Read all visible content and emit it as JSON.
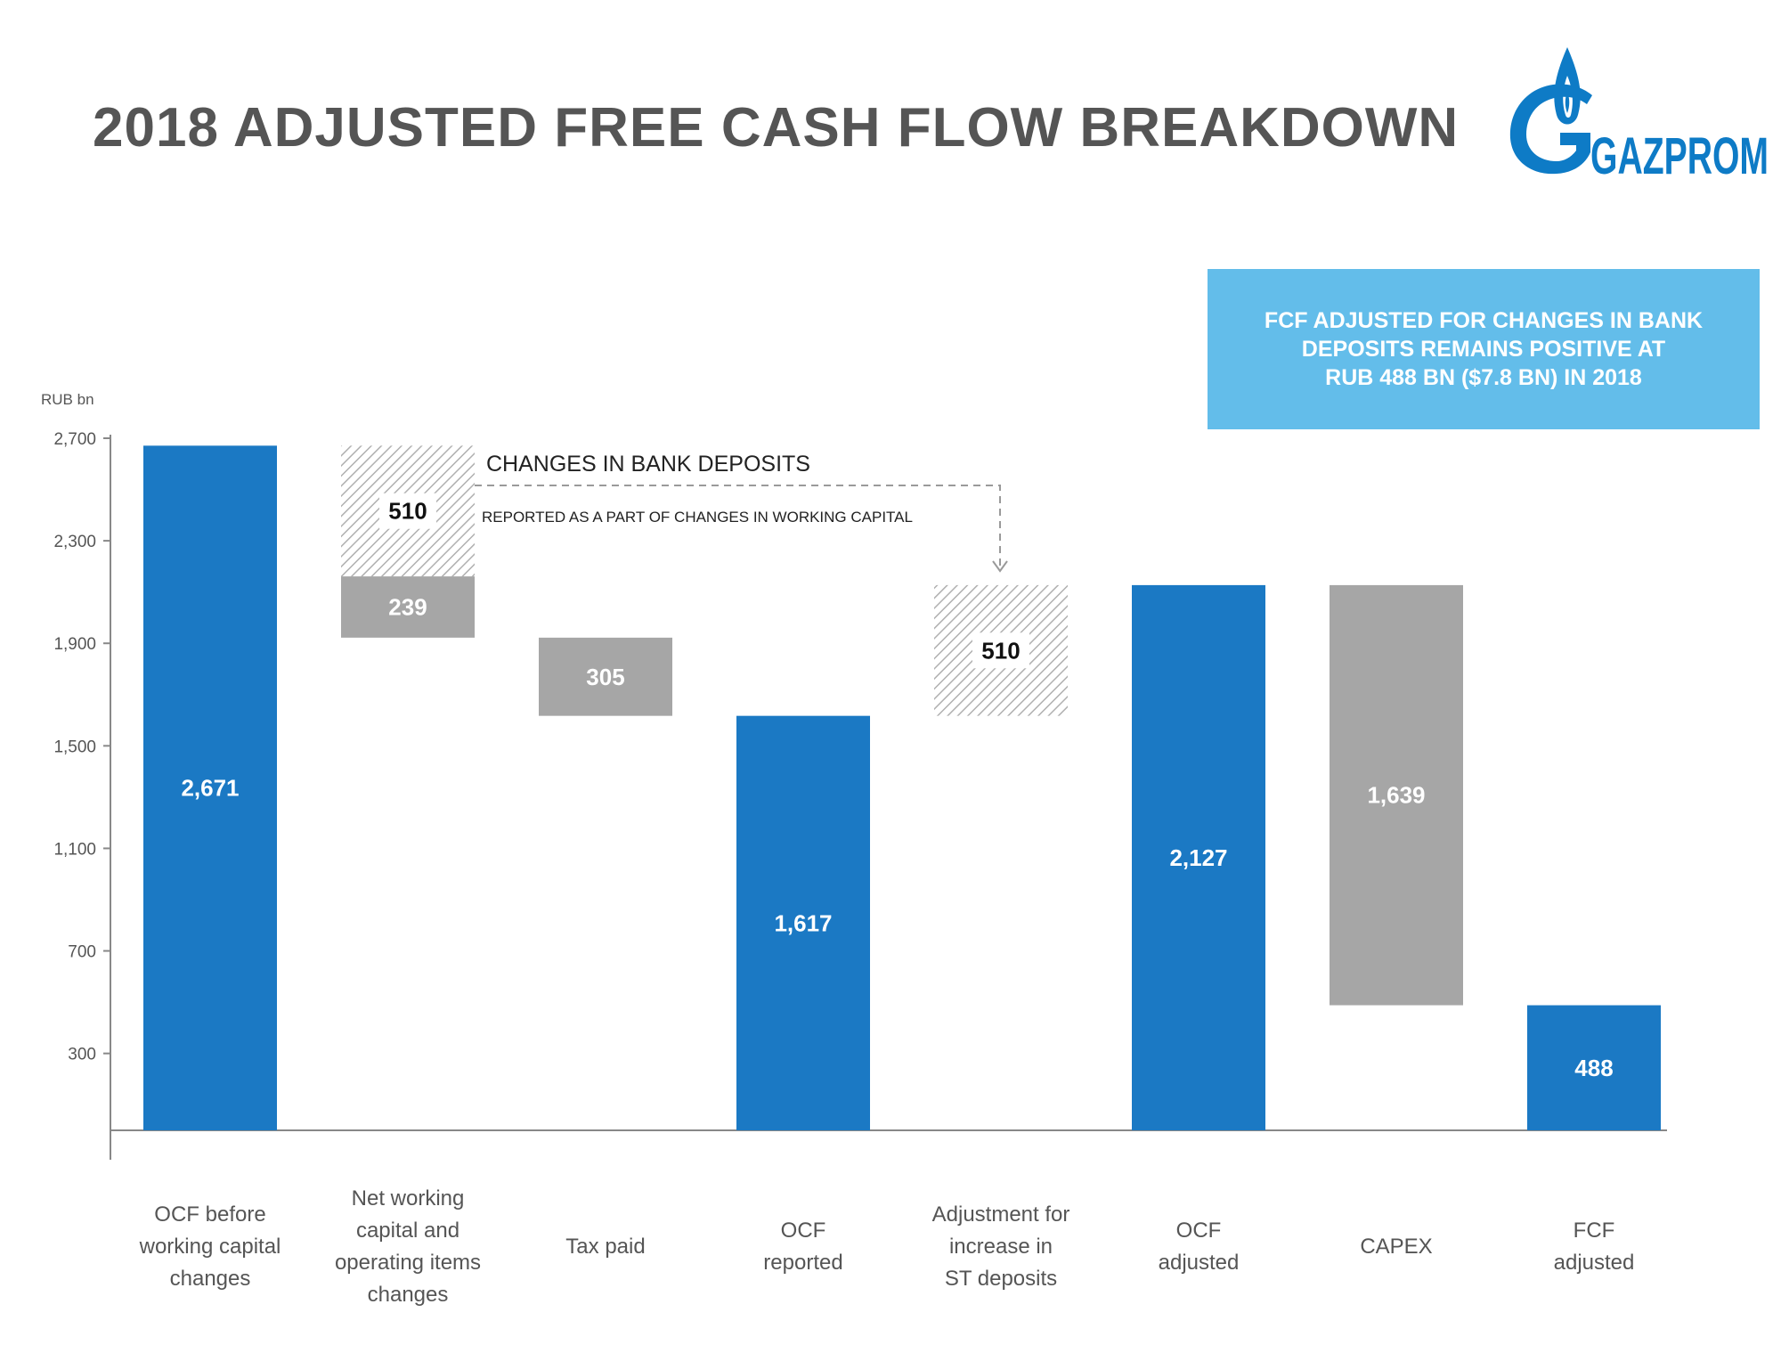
{
  "header": {
    "title": "2018 ADJUSTED FREE CASH FLOW BREAKDOWN",
    "logo_text": "GAZPROM"
  },
  "callout": {
    "lines": [
      "FCF ADJUSTED FOR CHANGES IN BANK",
      "DEPOSITS REMAINS POSITIVE AT",
      "RUB 488 BN ($7.8 BN) IN 2018"
    ]
  },
  "annotation": {
    "main": "CHANGES IN BANK DEPOSITS",
    "sub": "REPORTED AS A PART OF CHANGES IN WORKING CAPITAL"
  },
  "colors": {
    "blue": "#1b79c4",
    "gray": "#a6a6a6",
    "callout": "#63bdea",
    "logo": "#0e7bc6"
  },
  "chart_data": {
    "type": "bar",
    "subtype": "waterfall",
    "title": "2018 ADJUSTED FREE CASH FLOW BREAKDOWN",
    "ylabel": "RUB bn",
    "ylim": [
      0,
      2700
    ],
    "yticks": [
      300,
      700,
      1100,
      1500,
      1900,
      2300,
      2700
    ],
    "grid": false,
    "categories": [
      "OCF before working capital changes",
      "Net working capital and operating items changes",
      "Tax paid",
      "OCF reported",
      "Adjustment for increase in ST deposits",
      "OCF adjusted",
      "CAPEX",
      "FCF adjusted"
    ],
    "category_lines": [
      [
        "OCF before",
        "working capital",
        "changes"
      ],
      [
        "Net working",
        "capital and",
        "operating  items",
        "changes"
      ],
      [
        "Tax paid"
      ],
      [
        "OCF",
        "reported"
      ],
      [
        "Adjustment for",
        "increase in",
        "ST deposits"
      ],
      [
        "OCF",
        "adjusted"
      ],
      [
        "CAPEX"
      ],
      [
        "FCF",
        "adjusted"
      ]
    ],
    "bars": [
      {
        "category": 0,
        "kind": "total",
        "color": "blue",
        "base": 0,
        "top": 2671,
        "label": "2,671"
      },
      {
        "category": 1,
        "kind": "hatched",
        "base": 2161,
        "top": 2671,
        "label": "510"
      },
      {
        "category": 1,
        "kind": "decrease",
        "color": "gray",
        "base": 1922,
        "top": 2161,
        "label": "239"
      },
      {
        "category": 2,
        "kind": "decrease",
        "color": "gray",
        "base": 1617,
        "top": 1922,
        "label": "305"
      },
      {
        "category": 3,
        "kind": "total",
        "color": "blue",
        "base": 0,
        "top": 1617,
        "label": "1,617"
      },
      {
        "category": 4,
        "kind": "hatched",
        "base": 1617,
        "top": 2127,
        "label": "510"
      },
      {
        "category": 5,
        "kind": "total",
        "color": "blue",
        "base": 0,
        "top": 2127,
        "label": "2,127"
      },
      {
        "category": 6,
        "kind": "decrease",
        "color": "gray",
        "base": 488,
        "top": 2127,
        "label": "1,639"
      },
      {
        "category": 7,
        "kind": "total",
        "color": "blue",
        "base": 0,
        "top": 488,
        "label": "488"
      }
    ]
  }
}
